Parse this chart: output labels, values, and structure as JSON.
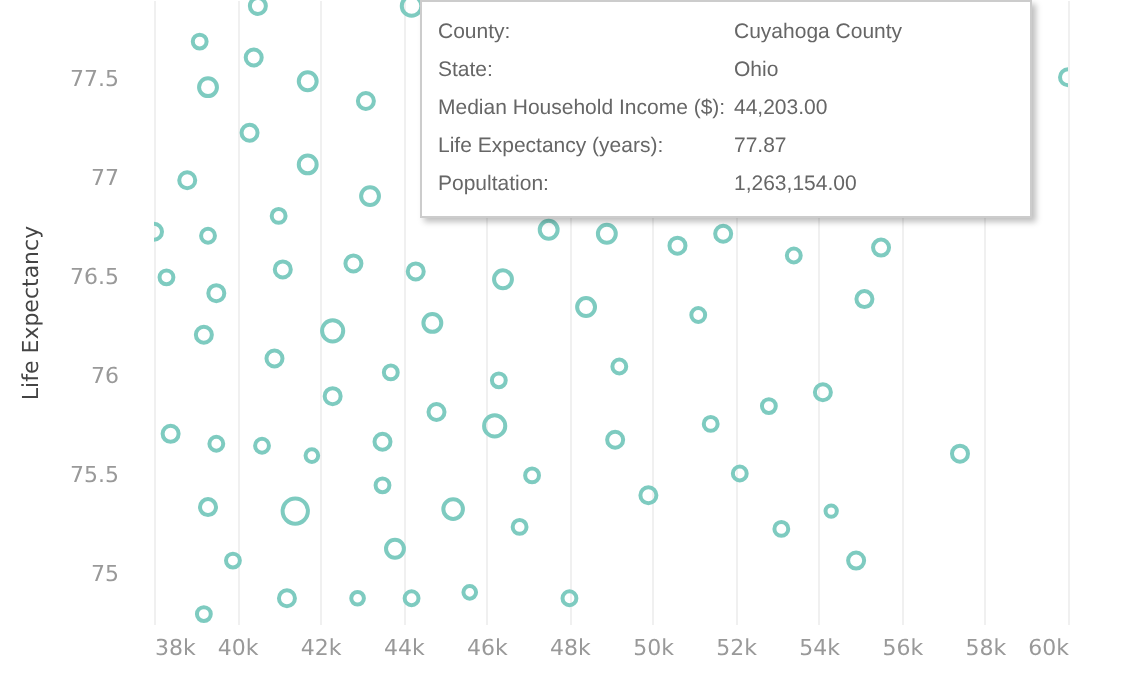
{
  "chart_data": {
    "type": "bubble",
    "ylabel": "Life Expectancy",
    "x": [
      40500,
      39100,
      40400,
      39300,
      41700,
      43100,
      40300,
      38800,
      41700,
      43200,
      41000,
      38000,
      39300,
      38300,
      39500,
      41100,
      42800,
      44300,
      46400,
      44700,
      42300,
      39200,
      44200,
      60000,
      48900,
      47500,
      50600,
      51700,
      53400,
      55500,
      48400,
      51100,
      55100,
      40900,
      43700,
      46300,
      42300,
      44800,
      46200,
      38400,
      39500,
      40600,
      41800,
      43500,
      43500,
      47100,
      39300,
      41400,
      45200,
      46800,
      39900,
      43800,
      39200,
      41200,
      42900,
      44200,
      45600,
      48000,
      49200,
      54100,
      52800,
      51400,
      49100,
      57400,
      52100,
      49900,
      54300,
      53100,
      54900
    ],
    "series": [
      {
        "color": "#7ecbc0",
        "values": [
          77.87,
          77.69,
          77.61,
          77.46,
          77.49,
          77.39,
          77.23,
          76.99,
          77.07,
          76.91,
          76.81,
          76.73,
          76.71,
          76.5,
          76.42,
          76.54,
          76.57,
          76.53,
          76.49,
          76.27,
          76.23,
          76.21,
          77.87,
          77.51,
          76.72,
          76.74,
          76.66,
          76.72,
          76.61,
          76.65,
          76.35,
          76.31,
          76.39,
          76.09,
          76.02,
          75.98,
          75.9,
          75.82,
          75.75,
          75.71,
          75.66,
          75.65,
          75.6,
          75.67,
          75.45,
          75.5,
          75.34,
          75.32,
          75.33,
          75.24,
          75.07,
          75.13,
          74.8,
          74.88,
          74.88,
          74.88,
          74.91,
          74.88,
          76.05,
          75.92,
          75.85,
          75.76,
          75.68,
          75.61,
          75.51,
          75.4,
          75.32,
          75.23,
          75.07
        ],
        "sizes": [
          0.4,
          0.3,
          0.4,
          0.5,
          0.5,
          0.4,
          0.4,
          0.4,
          0.5,
          0.5,
          0.3,
          0.4,
          0.3,
          0.3,
          0.4,
          0.4,
          0.4,
          0.4,
          0.5,
          0.5,
          0.7,
          0.4,
          0.6,
          0.4,
          0.5,
          0.5,
          0.4,
          0.4,
          0.3,
          0.4,
          0.5,
          0.3,
          0.4,
          0.4,
          0.3,
          0.3,
          0.4,
          0.4,
          0.7,
          0.4,
          0.3,
          0.3,
          0.25,
          0.4,
          0.3,
          0.3,
          0.4,
          1,
          0.6,
          0.3,
          0.3,
          0.5,
          0.3,
          0.4,
          0.25,
          0.3,
          0.25,
          0.3,
          0.3,
          0.4,
          0.3,
          0.3,
          0.4,
          0.4,
          0.3,
          0.4,
          0.2,
          0.3,
          0.4
        ]
      }
    ],
    "xlim": [
      38000,
      60000
    ],
    "xticks": [
      {
        "value": 38000,
        "label": "38k"
      },
      {
        "value": 40000,
        "label": "40k"
      },
      {
        "value": 42000,
        "label": "42k"
      },
      {
        "value": 44000,
        "label": "44k"
      },
      {
        "value": 46000,
        "label": "46k"
      },
      {
        "value": 48000,
        "label": "48k"
      },
      {
        "value": 50000,
        "label": "50k"
      },
      {
        "value": 52000,
        "label": "52k"
      },
      {
        "value": 54000,
        "label": "54k"
      },
      {
        "value": 56000,
        "label": "56k"
      },
      {
        "value": 58000,
        "label": "58k"
      },
      {
        "value": 60000,
        "label": "60k"
      }
    ],
    "ylim": [
      74.75,
      77.9
    ],
    "yticks": [
      75,
      75.5,
      76,
      76.5,
      77,
      77.5
    ],
    "grid": "x",
    "marker": "circle",
    "annotations": [
      "County: Cuyahoga County",
      "State: Ohio",
      "Median Household Income ($): 44,203.00",
      "Life Expectancy (years): 77.87",
      "Popultation: 1,263,154.00"
    ]
  }
}
